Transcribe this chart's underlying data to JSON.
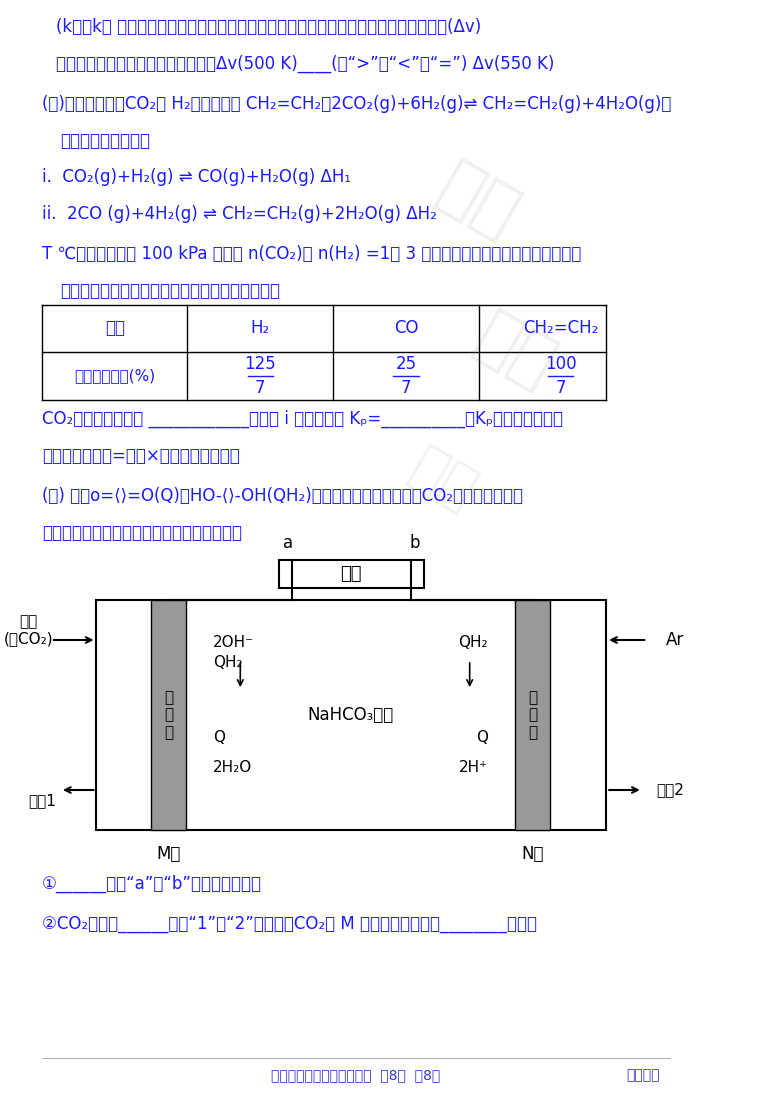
{
  "bg_color": "#ffffff",
  "text_color": "#1a1aff",
  "black_color": "#000000",
  "gray_color": "#808080",
  "red_color": "#cc0000",
  "line1": "(k正、k逆 为速率常数，与温度、偶化剂、接触面积有关，与浓度无关）。净反应速率(Δv)",
  "line2": "等于正、逆反应速率之差。平衡时，Δv(500 K)____(填“>”、“<”或“=”) Δv(550 K)",
  "line3": "(３)一定条件下，CO₂与 H₂反应可合成 CH₂=CH₂，2CO₂(g)+6H₂(g)⇌ CH₂=CH₂(g)+4H₂O(g)，",
  "line4": "该反应分两步进行：",
  "line5": "i.  CO₂(g)+H₂(g) ⇌ CO(g)+H₂O(g) ΔH₁",
  "line6": "ii.  2CO (g)+4H₂(g) ⇌ CH₂=CH₂(g)+2H₂O(g) ΔH₂",
  "line7": "T ℃，压强恒定为 100 kPa 时，将 n(CO₂)： n(H₂) =1： 3 的混合气体和偶化剂投入反应器中，",
  "line8": "达平衡时，部分组分的物质的量分数如下表所示。",
  "line9": "CO₂的平衡转化率为 ____________，反应 i 的平衡常数 Kₚ=__________（Kₚ是以分压表示的",
  "line10": "平衡常数，分压=总压×物质的量分数）。",
  "line11": "(４) 利用o=⟨⟩=O(Q)与HO-⟨⟩-OH(QH₂)电解转化法从烟气中分离CO₂的原理如图。已",
  "line12": "知气体可选择性通过膜电极，溶液不能通过。",
  "line13": "①______（填“a”或“b”）为电源负极。",
  "line14": "②CO₂从出口______（填“1”或“2”）排出，CO₂在 M 极上发生的反应为________。高三",
  "footer_left": "高三年级期中检测化学试题  第8页  共8页",
  "footer_right": "高三答案",
  "table_headers": [
    "组分",
    "H₂",
    "CO",
    "CH₂=CH₂"
  ],
  "table_row_label": "物质的量分数(%)",
  "table_values": [
    "125/7",
    "25/7",
    "100/7"
  ],
  "diagram": {
    "power_label": "电源",
    "a_label": "a",
    "b_label": "b",
    "smoke_label": "烟气\n(含CO₂)",
    "outlet1_label": "出口1",
    "outlet2_label": "出口2",
    "ar_label": "Ar",
    "m_label": "M极",
    "n_label": "N极",
    "mem_left": "膜\n电\n极",
    "mem_right": "膜\n电\n极",
    "oh_label": "2OH⁻",
    "qh2_left": "QH₂",
    "q_left": "Q",
    "water_label": "2H₂O",
    "nahco3_label": "NaHCO₃溶液",
    "qh2_right": "QH₂",
    "q_right": "Q",
    "2h_label": "2H⁺"
  }
}
